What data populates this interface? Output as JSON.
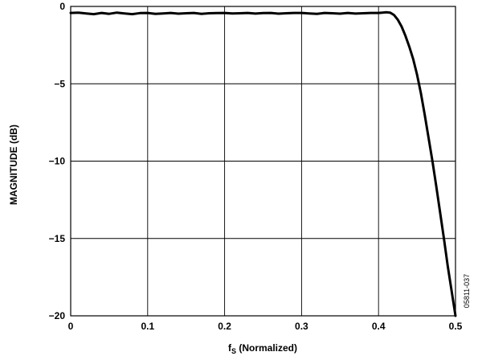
{
  "chart_data": {
    "type": "line",
    "title": "",
    "xlabel_main": "f",
    "xlabel_sub": "S",
    "xlabel_rest": " (Normalized)",
    "ylabel": "MAGNITUDE (dB)",
    "xlim": [
      0,
      0.5
    ],
    "ylim": [
      -20,
      0
    ],
    "x_ticks": [
      0,
      0.1,
      0.2,
      0.3,
      0.4,
      0.5
    ],
    "x_tick_labels": [
      "0",
      "0.1",
      "0.2",
      "0.3",
      "0.4",
      "0.5"
    ],
    "y_ticks": [
      0,
      -5,
      -10,
      -15,
      -20
    ],
    "y_tick_labels": [
      "0",
      "−5",
      "−10",
      "−15",
      "−20"
    ],
    "grid": true,
    "series": [
      {
        "x": [
          0,
          0.01,
          0.02,
          0.03,
          0.04,
          0.05,
          0.06,
          0.07,
          0.08,
          0.09,
          0.1,
          0.11,
          0.12,
          0.13,
          0.14,
          0.15,
          0.16,
          0.17,
          0.18,
          0.19,
          0.2,
          0.21,
          0.22,
          0.23,
          0.24,
          0.25,
          0.26,
          0.27,
          0.28,
          0.29,
          0.3,
          0.31,
          0.32,
          0.33,
          0.34,
          0.35,
          0.36,
          0.37,
          0.38,
          0.39,
          0.4,
          0.405,
          0.41,
          0.415,
          0.42,
          0.425,
          0.43,
          0.435,
          0.44,
          0.445,
          0.45,
          0.455,
          0.46,
          0.465,
          0.47,
          0.475,
          0.48,
          0.485,
          0.49,
          0.495,
          0.5
        ],
        "y": [
          -0.42,
          -0.4,
          -0.45,
          -0.5,
          -0.42,
          -0.48,
          -0.4,
          -0.45,
          -0.5,
          -0.43,
          -0.42,
          -0.48,
          -0.45,
          -0.42,
          -0.47,
          -0.44,
          -0.42,
          -0.48,
          -0.44,
          -0.43,
          -0.42,
          -0.45,
          -0.44,
          -0.42,
          -0.46,
          -0.43,
          -0.42,
          -0.47,
          -0.44,
          -0.42,
          -0.42,
          -0.45,
          -0.48,
          -0.42,
          -0.44,
          -0.47,
          -0.42,
          -0.46,
          -0.44,
          -0.42,
          -0.42,
          -0.4,
          -0.38,
          -0.4,
          -0.55,
          -0.85,
          -1.3,
          -1.9,
          -2.6,
          -3.4,
          -4.4,
          -5.6,
          -7.0,
          -8.5,
          -10.0,
          -11.6,
          -13.3,
          -15.0,
          -16.8,
          -18.4,
          -20.0
        ]
      }
    ],
    "side_note": "05811-037"
  }
}
